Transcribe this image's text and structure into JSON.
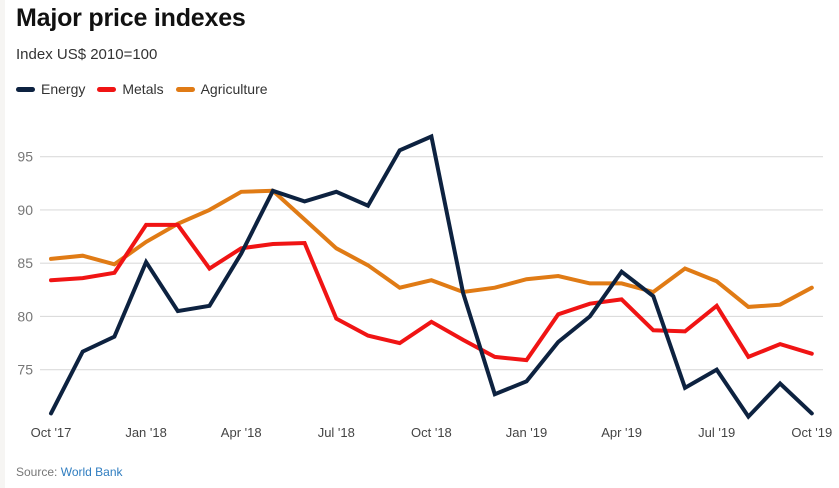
{
  "header": {
    "title": "Major price indexes",
    "subtitle": "Index US$ 2010=100"
  },
  "source": {
    "prefix": "Source: ",
    "link_text": "World Bank"
  },
  "chart_data": {
    "type": "line",
    "title": "Major price indexes",
    "subtitle": "Index US$ 2010=100",
    "xlabel": "",
    "ylabel": "",
    "ylim": [
      70,
      97
    ],
    "yticks": [
      75,
      80,
      85,
      90,
      95
    ],
    "grid": true,
    "legend_position": "top-left",
    "x": [
      "Oct '17",
      "Nov '17",
      "Dec '17",
      "Jan '18",
      "Feb '18",
      "Mar '18",
      "Apr '18",
      "May '18",
      "Jun '18",
      "Jul '18",
      "Aug '18",
      "Sep '18",
      "Oct '18",
      "Nov '18",
      "Dec '18",
      "Jan '19",
      "Feb '19",
      "Mar '19",
      "Apr '19",
      "May '19",
      "Jun '19",
      "Jul '19",
      "Aug '19",
      "Sep '19",
      "Oct '19"
    ],
    "xtick_labels": [
      {
        "index": 0,
        "label": "Oct '17"
      },
      {
        "index": 3,
        "label": "Jan '18"
      },
      {
        "index": 6,
        "label": "Apr '18"
      },
      {
        "index": 9,
        "label": "Jul '18"
      },
      {
        "index": 12,
        "label": "Oct '18"
      },
      {
        "index": 15,
        "label": "Jan '19"
      },
      {
        "index": 18,
        "label": "Apr '19"
      },
      {
        "index": 21,
        "label": "Jul '19"
      },
      {
        "index": 24,
        "label": "Oct '19"
      }
    ],
    "series": [
      {
        "name": "Energy",
        "color": "#0d2240",
        "values": [
          70.9,
          76.7,
          78.1,
          85.1,
          80.5,
          81.0,
          85.9,
          91.8,
          90.8,
          91.7,
          90.4,
          95.6,
          96.9,
          82.2,
          72.7,
          73.9,
          77.6,
          80.0,
          84.2,
          81.9,
          73.3,
          75.0,
          70.6,
          73.7,
          70.9
        ]
      },
      {
        "name": "Metals",
        "color": "#f01414",
        "values": [
          83.4,
          83.6,
          84.1,
          88.6,
          88.6,
          84.5,
          86.4,
          86.8,
          86.9,
          79.8,
          78.2,
          77.5,
          79.5,
          77.8,
          76.2,
          75.9,
          80.2,
          81.2,
          81.6,
          78.7,
          78.6,
          81.0,
          76.2,
          77.4,
          76.5
        ]
      },
      {
        "name": "Agriculture",
        "color": "#e07b15",
        "values": [
          85.4,
          85.7,
          84.9,
          87.0,
          88.7,
          90.0,
          91.7,
          91.8,
          89.1,
          86.4,
          84.8,
          82.7,
          83.4,
          82.3,
          82.7,
          83.5,
          83.8,
          83.1,
          83.1,
          82.3,
          84.5,
          83.3,
          80.9,
          81.1,
          82.7
        ]
      }
    ]
  }
}
